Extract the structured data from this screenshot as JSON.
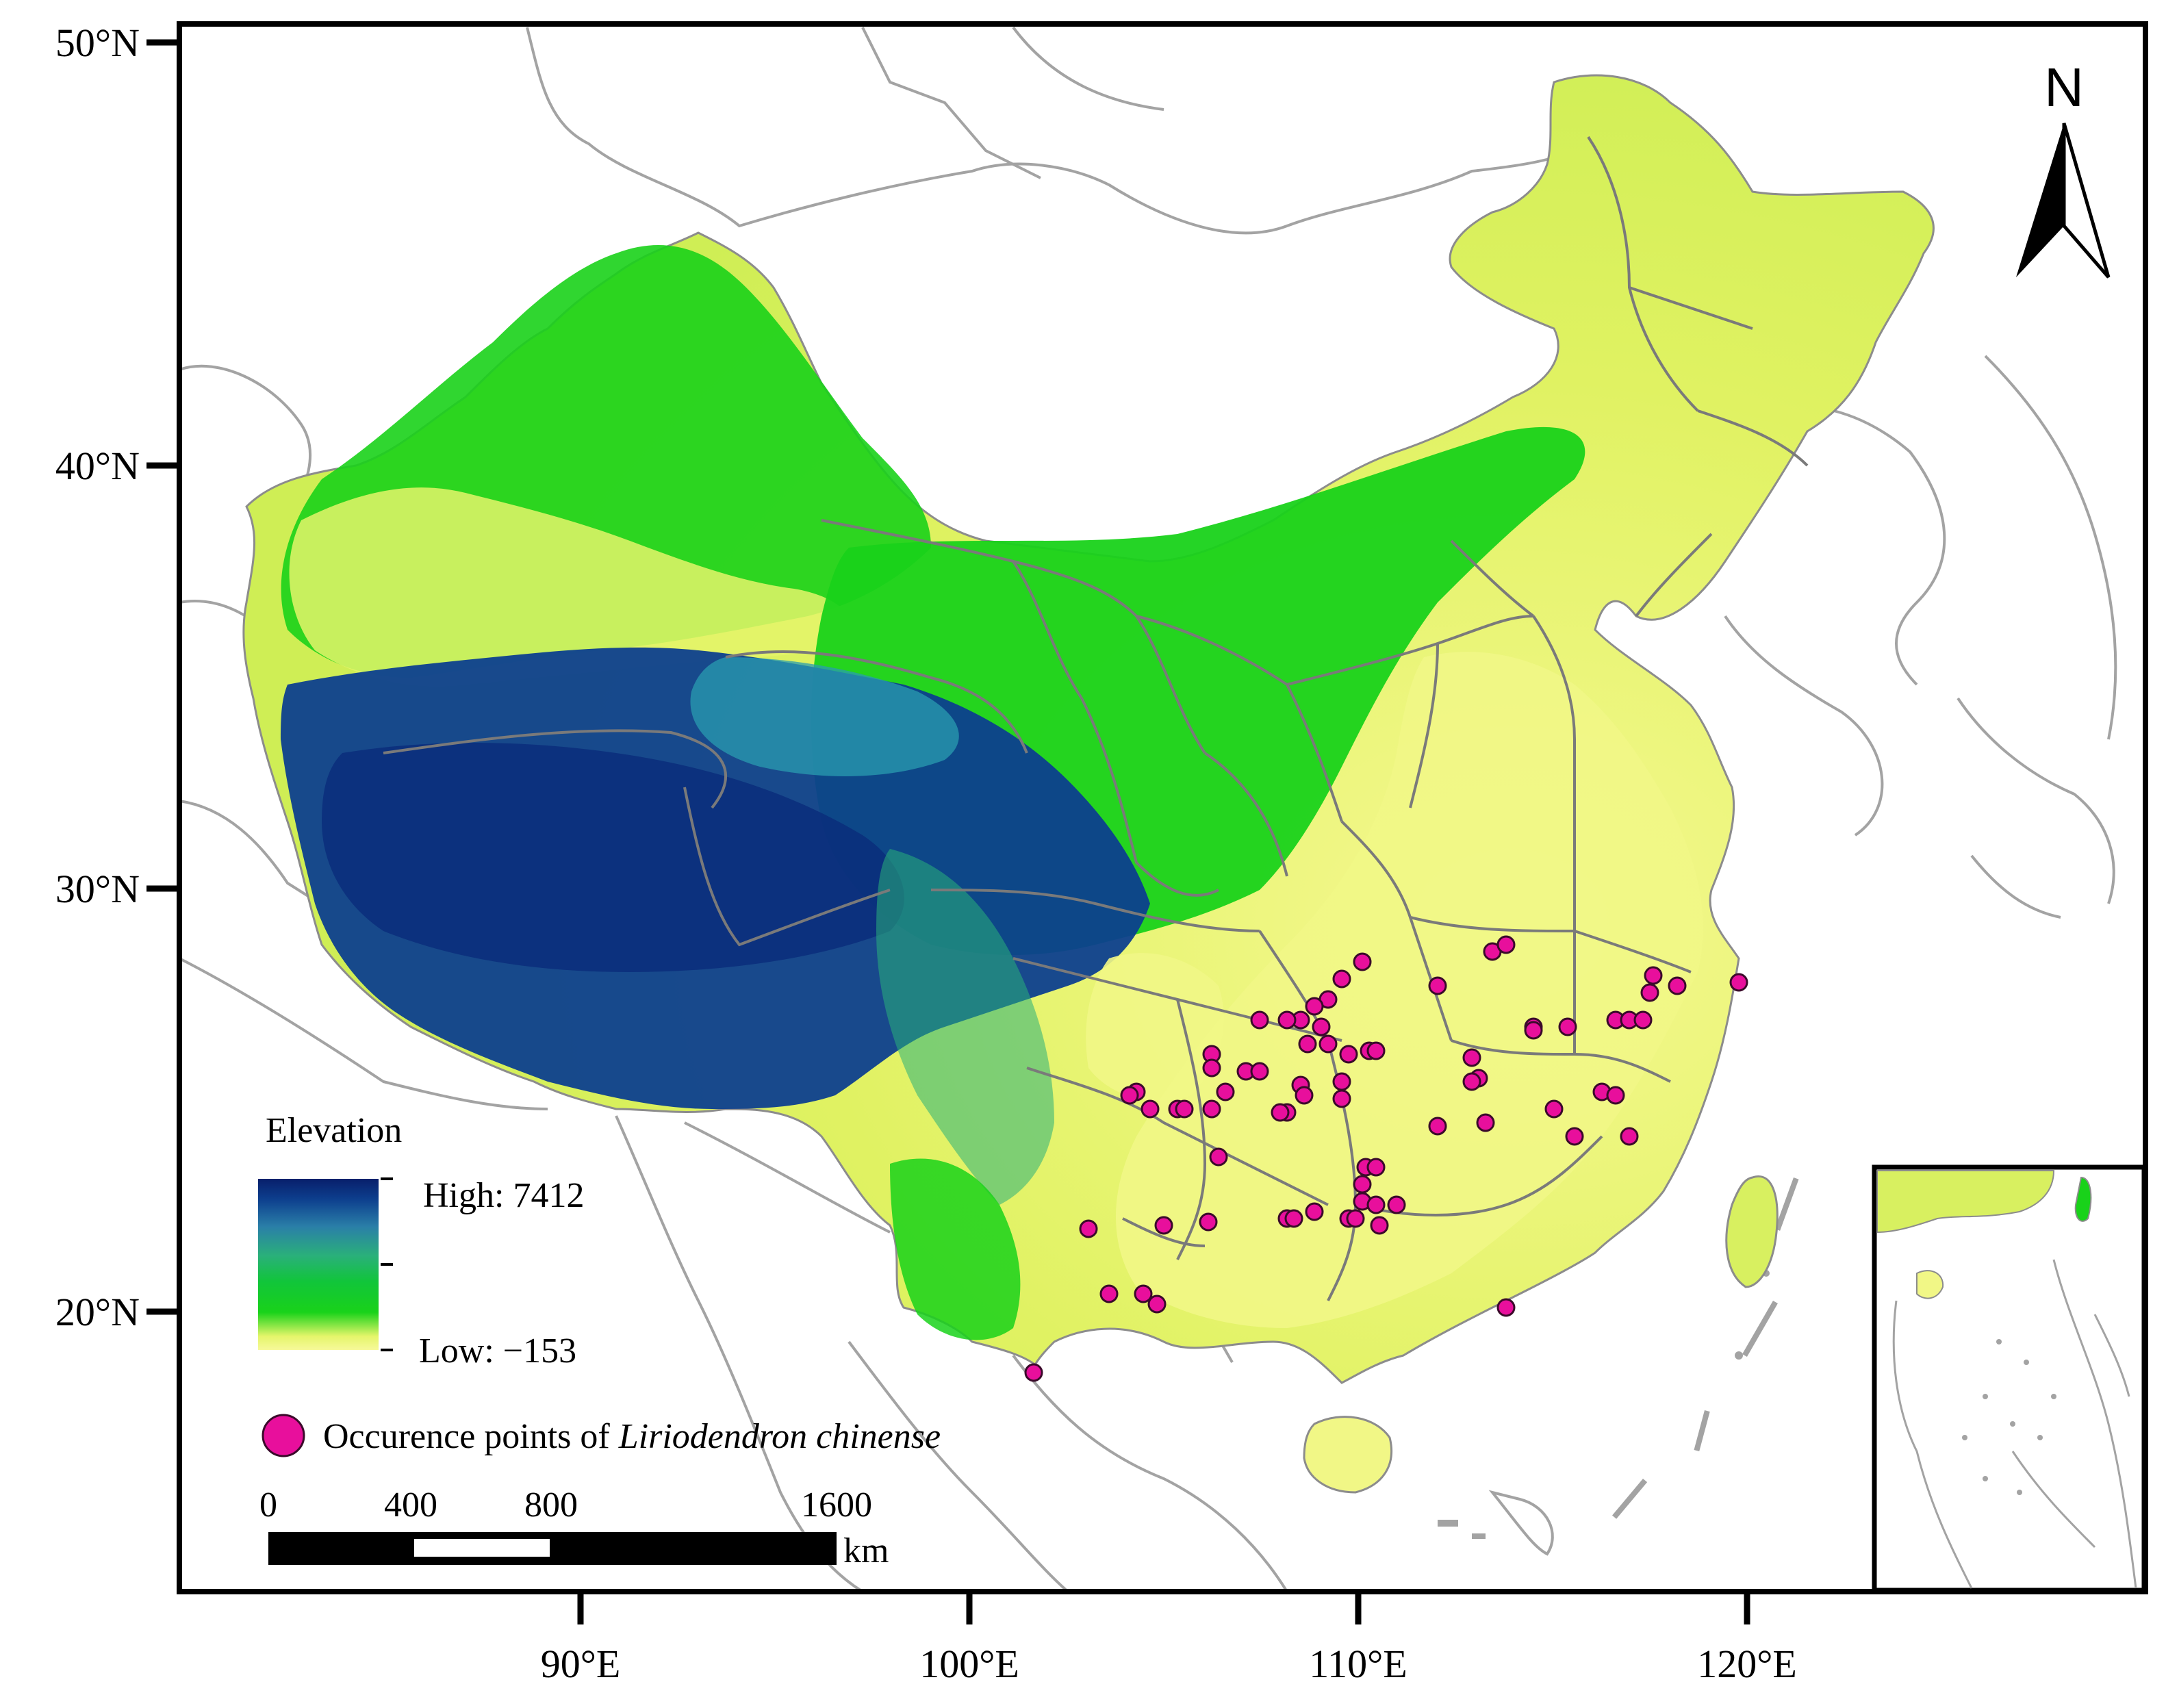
{
  "map": {
    "axes": {
      "y_ticks": [
        {
          "label": "50°N",
          "lat": 50
        },
        {
          "label": "40°N",
          "lat": 40
        },
        {
          "label": "30°N",
          "lat": 30
        },
        {
          "label": "20°N",
          "lat": 20
        }
      ],
      "x_ticks": [
        {
          "label": "90°E",
          "lon": 90
        },
        {
          "label": "100°E",
          "lon": 100
        },
        {
          "label": "110°E",
          "lon": 110
        },
        {
          "label": "120°E",
          "lon": 120
        }
      ]
    },
    "north_arrow": {
      "label": "N"
    },
    "legend": {
      "title": "Elevation",
      "high_label": "High: 7412",
      "low_label": "Low: −153",
      "colors": [
        "#f7f99a",
        "#d8f060",
        "#19d21a",
        "#2ab07a",
        "#2a7fa8",
        "#0d3f8e",
        "#081f6b"
      ],
      "occurrence_prefix": "Occurence points of ",
      "occurrence_species": "Liriodendron chinense",
      "occurrence_color": "#e80f9c"
    },
    "scale_bar": {
      "labels": [
        "0",
        "400",
        "800",
        "1600"
      ],
      "unit": "km"
    }
  }
}
